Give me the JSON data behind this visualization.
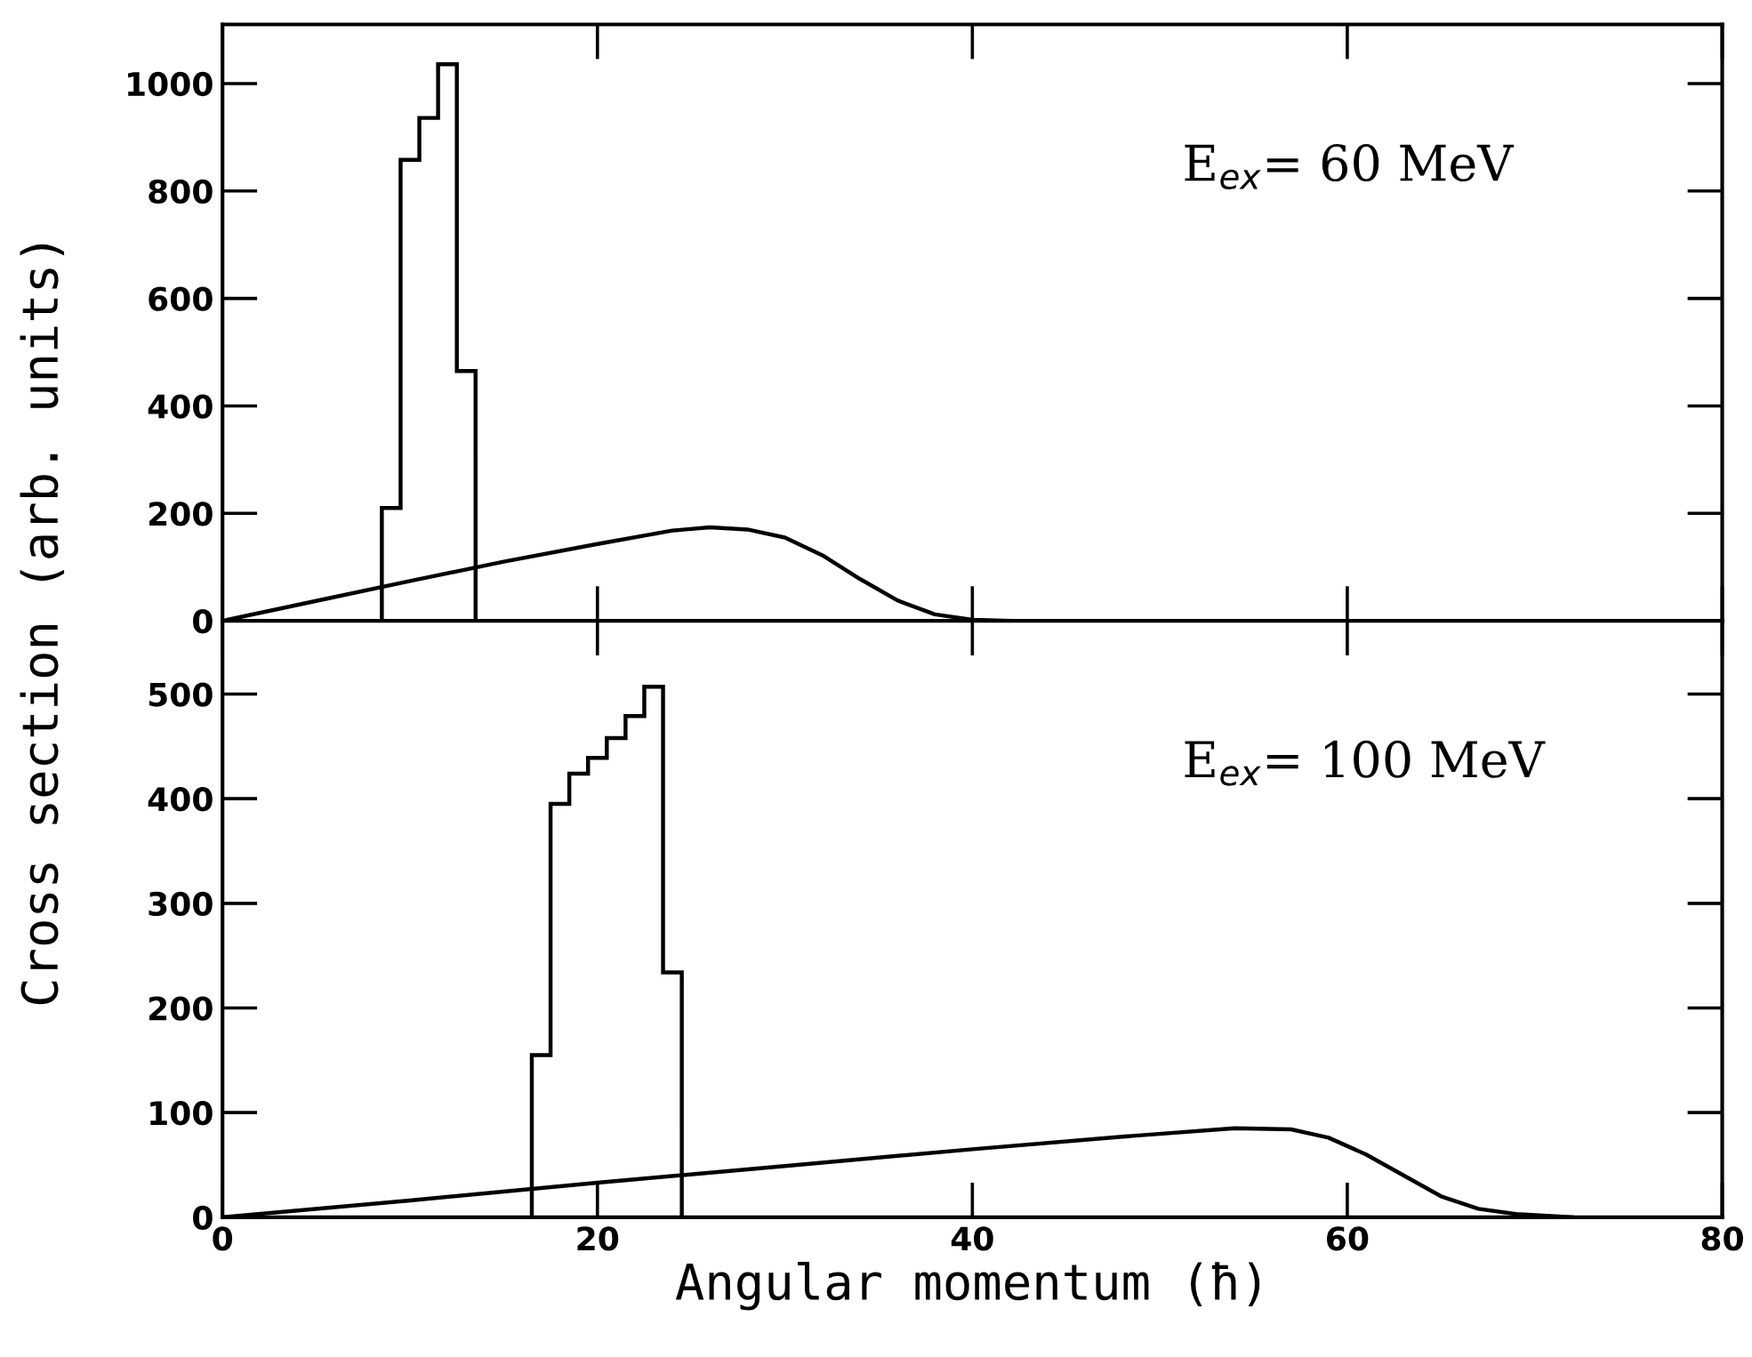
{
  "chart_data": [
    {
      "type": "histogram",
      "ylabel": "Cross section (arb. units)",
      "annotations": [
        "E$_{ex}$= 60 MeV"
      ],
      "bins": [
        8.5,
        9.5,
        10.5,
        11.5,
        12.5,
        13.5
      ],
      "values": [
        210,
        858,
        936,
        1036,
        465
      ],
      "color": "#000000",
      "series": [
        {
          "type": "line",
          "color": "#000000",
          "x": [
            0,
            5,
            10,
            15,
            20,
            24,
            26,
            28,
            30,
            32,
            34,
            36,
            38,
            40,
            42
          ],
          "values": [
            0,
            37,
            74,
            110,
            143,
            168,
            174,
            170,
            155,
            122,
            78,
            38,
            12,
            2,
            0
          ]
        }
      ],
      "xlim": [
        0,
        80
      ],
      "ylim": [
        0,
        1110
      ],
      "tick_labels": "y",
      "xticks": [
        0,
        20,
        40,
        60,
        80
      ],
      "yticks": [
        0,
        200,
        400,
        600,
        800,
        1000
      ]
    },
    {
      "type": "histogram",
      "xlabel": "Angular momentum (ħ)",
      "annotations": [
        "E$_{ex}$= 100 MeV"
      ],
      "bins": [
        16.5,
        17.5,
        18.5,
        19.5,
        20.5,
        21.5,
        22.5,
        23.5,
        24.5
      ],
      "values": [
        155,
        395,
        424,
        439,
        458,
        479,
        507,
        234
      ],
      "color": "#000000",
      "series": [
        {
          "type": "line",
          "color": "#000000",
          "x": [
            0,
            10,
            20,
            30,
            40,
            48,
            54,
            57,
            59,
            61,
            63,
            65,
            67,
            69,
            72
          ],
          "values": [
            0,
            16,
            33,
            49,
            65,
            77,
            85,
            84,
            76,
            60,
            40,
            20,
            8,
            3,
            0
          ]
        }
      ],
      "xlim": [
        0,
        80
      ],
      "ylim": [
        0,
        570
      ],
      "xticks": [
        0,
        20,
        40,
        60,
        80
      ],
      "yticks": [
        0,
        100,
        200,
        300,
        400,
        500
      ]
    }
  ]
}
